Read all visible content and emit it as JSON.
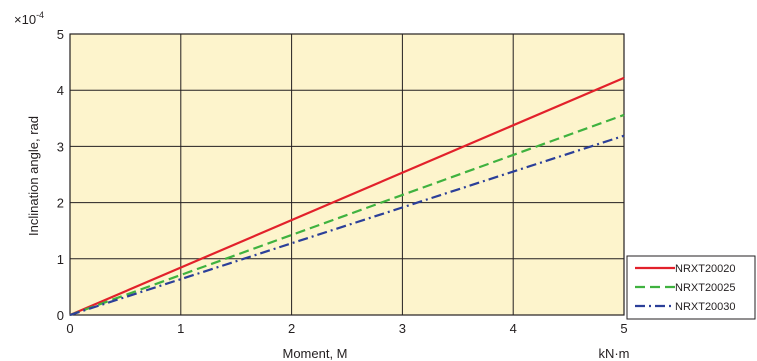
{
  "chart_data": {
    "type": "line",
    "title": "",
    "xlabel": "Moment, M",
    "xunit": "kN·m",
    "ylabel": "Inclination angle, rad",
    "yscale_label": "×10",
    "yscale_exp": "-4",
    "xlim": [
      0,
      5
    ],
    "ylim": [
      0,
      5
    ],
    "xticks": [
      "0",
      "1",
      "2",
      "3",
      "4",
      "5"
    ],
    "yticks": [
      "0",
      "1",
      "2",
      "3",
      "4",
      "5"
    ],
    "grid": true,
    "legend_position": "right-bottom",
    "background_color": "#fdf4cc",
    "series": [
      {
        "name": "NRXT20020",
        "x": [
          0,
          5
        ],
        "y": [
          0,
          4.22
        ],
        "color": "#e2212b",
        "style": "solid"
      },
      {
        "name": "NRXT20025",
        "x": [
          0,
          5
        ],
        "y": [
          0,
          3.56
        ],
        "color": "#3fb23f",
        "style": "dashed"
      },
      {
        "name": "NRXT20030",
        "x": [
          0,
          5
        ],
        "y": [
          0,
          3.19
        ],
        "color": "#2b3f99",
        "style": "dashdot"
      }
    ]
  }
}
